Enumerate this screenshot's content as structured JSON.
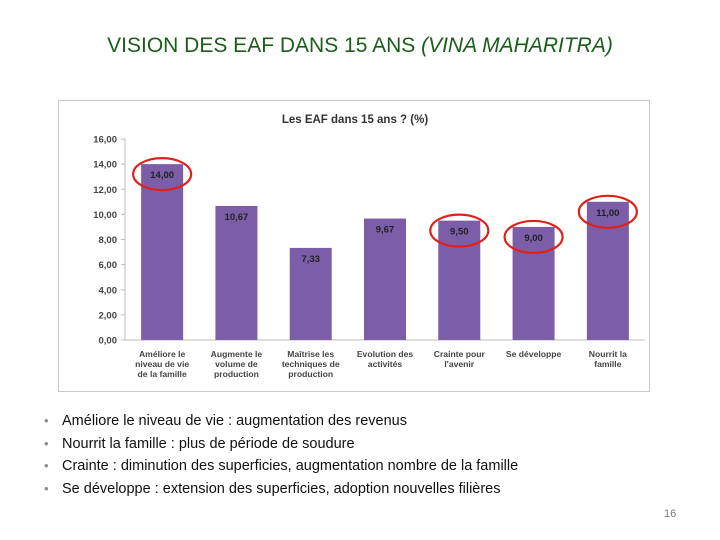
{
  "slide": {
    "title_main": "VISION DES EAF DANS 15 ANS ",
    "title_italic": "(VINA MAHARITRA)",
    "page_number": "16"
  },
  "colors": {
    "bar": "#7b5ea7",
    "highlight_circle": "#e0201a",
    "title": "#1a5e1a"
  },
  "chart_data": {
    "type": "bar",
    "title": "Les EAF dans 15 ans ? (%)",
    "categories": [
      [
        "Améliore le",
        "niveau de vie",
        "de la famille"
      ],
      [
        "Augmente le",
        "volume de",
        "production"
      ],
      [
        "Maîtrise les",
        "techniques de",
        "production"
      ],
      [
        "Evolution des",
        "activités"
      ],
      [
        "Crainte pour",
        "l'avenir"
      ],
      [
        "Se développe"
      ],
      [
        "Nourrit la",
        "famille"
      ]
    ],
    "values": [
      14.0,
      10.67,
      7.33,
      9.67,
      9.5,
      9.0,
      11.0
    ],
    "value_labels": [
      "14,00",
      "10,67",
      "7,33",
      "9,67",
      "9,50",
      "9,00",
      "11,00"
    ],
    "highlighted": [
      true,
      false,
      false,
      false,
      true,
      true,
      true
    ],
    "ylim": [
      0,
      16
    ],
    "yticks": [
      0,
      2,
      4,
      6,
      8,
      10,
      12,
      14,
      16
    ],
    "ytick_labels": [
      "0,00",
      "2,00",
      "4,00",
      "6,00",
      "8,00",
      "10,00",
      "12,00",
      "14,00",
      "16,00"
    ],
    "xlabel": "",
    "ylabel": "",
    "grid": false,
    "legend": "none"
  },
  "bullets": [
    "Améliore le niveau de vie : augmentation des revenus",
    "Nourrit la famille : plus de période de soudure",
    "Crainte : diminution des superficies, augmentation nombre de la famille",
    "Se développe : extension des superficies, adoption nouvelles filières"
  ],
  "bullet_symbol": "•"
}
